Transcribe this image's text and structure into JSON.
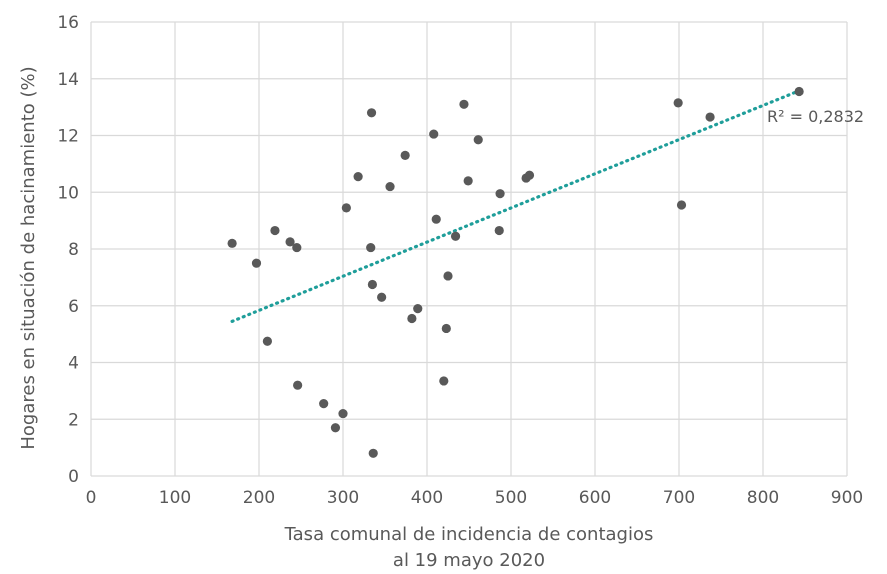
{
  "chart_data": {
    "type": "scatter",
    "title": "",
    "xlabel_lines": [
      "Tasa comunal de incidencia de contagios",
      "al 19 mayo 2020"
    ],
    "ylabel": "Hogares en situación de hacinamiento (%)",
    "xlim": [
      0,
      900
    ],
    "ylim": [
      0,
      16
    ],
    "x_ticks": [
      "0",
      "100",
      "200",
      "300",
      "400",
      "500",
      "600",
      "700",
      "800",
      "900"
    ],
    "y_ticks": [
      "0",
      "2",
      "4",
      "6",
      "8",
      "10",
      "12",
      "14",
      "16"
    ],
    "grid": true,
    "point_color": "#595959",
    "trend_color": "#1f9e9a",
    "trendline": {
      "type": "linear",
      "x_start": 168,
      "y_start": 5.45,
      "x_end": 845,
      "y_end": 13.6,
      "label": "R² = 0,2832"
    },
    "points": [
      {
        "x": 168,
        "y": 8.2
      },
      {
        "x": 197,
        "y": 7.5
      },
      {
        "x": 210,
        "y": 4.75
      },
      {
        "x": 219,
        "y": 8.65
      },
      {
        "x": 237,
        "y": 8.25
      },
      {
        "x": 245,
        "y": 8.05
      },
      {
        "x": 246,
        "y": 3.2
      },
      {
        "x": 277,
        "y": 2.55
      },
      {
        "x": 291,
        "y": 1.7
      },
      {
        "x": 300,
        "y": 2.2
      },
      {
        "x": 304,
        "y": 9.45
      },
      {
        "x": 318,
        "y": 10.55
      },
      {
        "x": 333,
        "y": 8.05
      },
      {
        "x": 334,
        "y": 12.8
      },
      {
        "x": 335,
        "y": 6.75
      },
      {
        "x": 336,
        "y": 0.8
      },
      {
        "x": 346,
        "y": 6.3
      },
      {
        "x": 356,
        "y": 10.2
      },
      {
        "x": 374,
        "y": 11.3
      },
      {
        "x": 382,
        "y": 5.55
      },
      {
        "x": 389,
        "y": 5.9
      },
      {
        "x": 408,
        "y": 12.05
      },
      {
        "x": 411,
        "y": 9.05
      },
      {
        "x": 420,
        "y": 3.35
      },
      {
        "x": 423,
        "y": 5.2
      },
      {
        "x": 425,
        "y": 7.05
      },
      {
        "x": 434,
        "y": 8.45
      },
      {
        "x": 444,
        "y": 13.1
      },
      {
        "x": 449,
        "y": 10.4
      },
      {
        "x": 461,
        "y": 11.85
      },
      {
        "x": 486,
        "y": 8.65
      },
      {
        "x": 487,
        "y": 9.95
      },
      {
        "x": 518,
        "y": 10.5
      },
      {
        "x": 522,
        "y": 10.6
      },
      {
        "x": 699,
        "y": 13.15
      },
      {
        "x": 703,
        "y": 9.55
      },
      {
        "x": 737,
        "y": 12.65
      },
      {
        "x": 843,
        "y": 13.55
      }
    ]
  }
}
